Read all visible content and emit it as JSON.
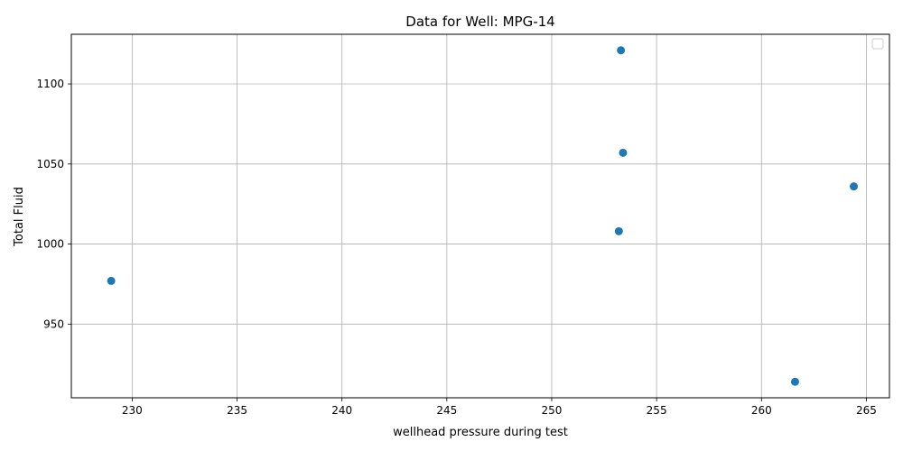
{
  "chart_data": {
    "type": "scatter",
    "title": "Data for Well: MPG-14",
    "xlabel": "wellhead pressure during test",
    "ylabel": "Total Fluid",
    "xlim": [
      227.1,
      266.1
    ],
    "ylim": [
      904,
      1131
    ],
    "xticks": [
      230,
      235,
      240,
      245,
      250,
      255,
      260,
      265
    ],
    "yticks": [
      950,
      1000,
      1050,
      1100
    ],
    "grid": true,
    "legend": "top-right (empty)",
    "color": "#1f77b4",
    "points": [
      {
        "x": 229.0,
        "y": 977
      },
      {
        "x": 253.2,
        "y": 1008
      },
      {
        "x": 253.3,
        "y": 1121
      },
      {
        "x": 253.4,
        "y": 1057
      },
      {
        "x": 261.6,
        "y": 914
      },
      {
        "x": 264.4,
        "y": 1036
      }
    ]
  }
}
